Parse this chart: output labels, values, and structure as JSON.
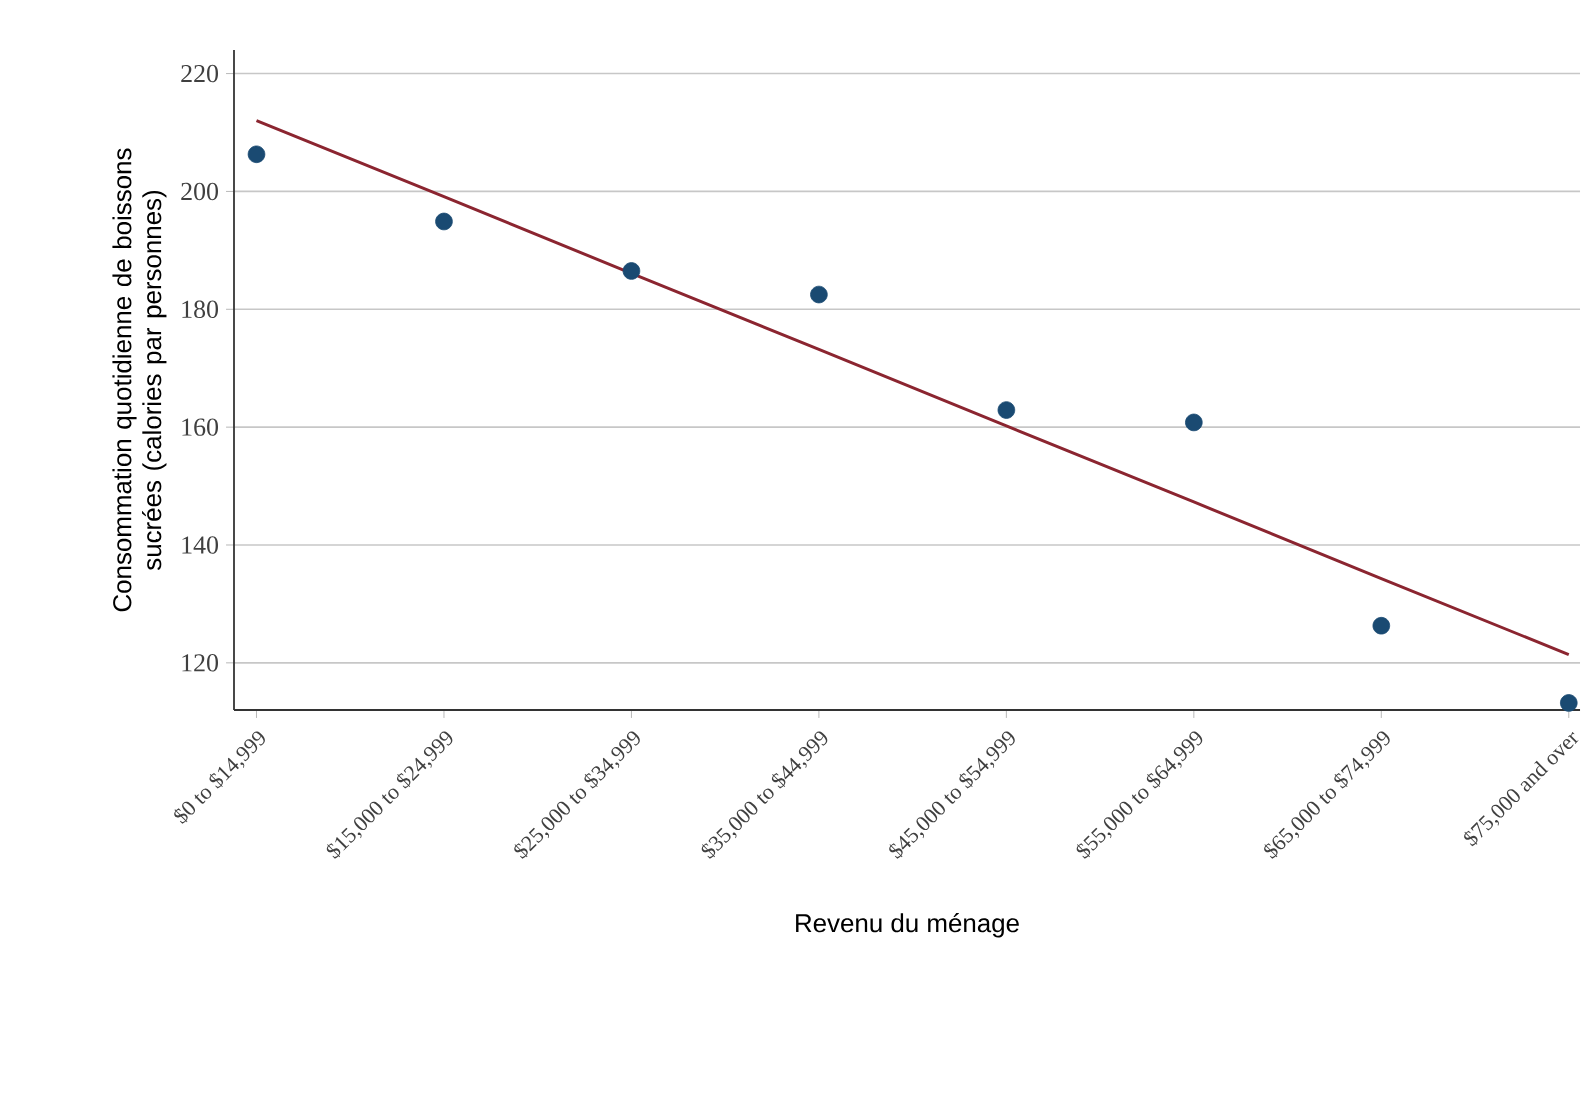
{
  "chart_data": {
    "type": "scatter",
    "xlabel": "Revenu du ménage",
    "ylabel": "Consommation quotidienne de boissons sucrées (calories par personnes)",
    "categories": [
      "$0 to $14,999",
      "$15,000 to $24,999",
      "$25,000 to $34,999",
      "$35,000 to $44,999",
      "$45,000 to $54,999",
      "$55,000 to $64,999",
      "$65,000 to $74,999",
      "$75,000 and over"
    ],
    "series": [
      {
        "color": "#1a4a72",
        "marker": "circle",
        "values": [
          206.3,
          194.9,
          186.5,
          182.5,
          162.9,
          160.8,
          126.3,
          113.2
        ]
      },
      {
        "type": "line",
        "color": "#8b2530",
        "marker": "none",
        "line_style": "solid",
        "values": [
          212,
          199.1,
          186.1,
          173.2,
          160.2,
          147.3,
          134.3,
          121.4
        ]
      }
    ],
    "ylim": [
      112,
      224
    ],
    "yticks": [
      120,
      140,
      160,
      180,
      200,
      220
    ],
    "grid": "y"
  }
}
